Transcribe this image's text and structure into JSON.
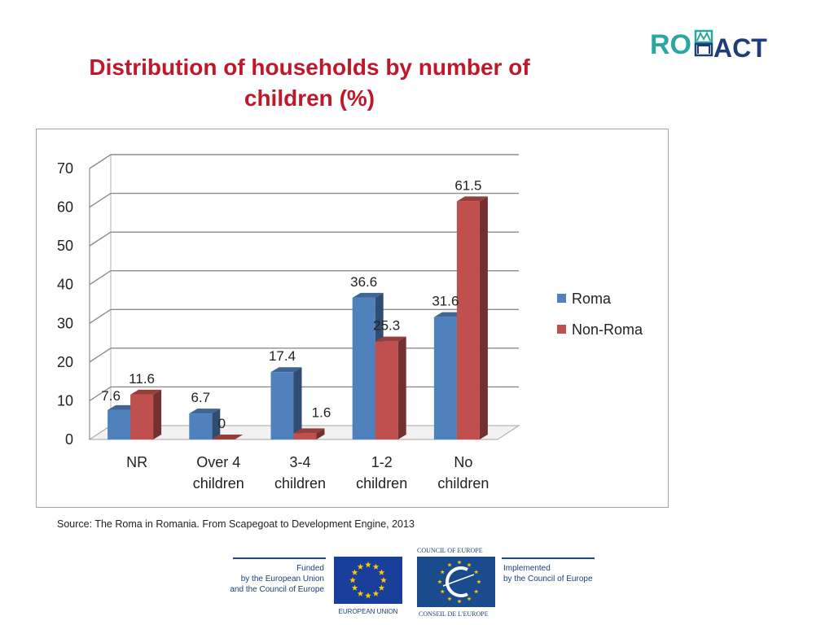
{
  "title_line1": "Distribution of households by number of",
  "title_line2": "children (%)",
  "logo": {
    "part1": "RO",
    "part2": "ACT",
    "colors": {
      "teal": "#2aa7a0",
      "navy": "#1f3e78"
    }
  },
  "source": "Source: The Roma in Romania. From Scapegoat to Development Engine, 2013",
  "footer": {
    "funded_line1": "Funded",
    "funded_line2": "by the European Union",
    "funded_line3": "and the Council of Europe",
    "eu_label": "EUROPEAN UNION",
    "coe_top": "COUNCIL OF EUROPE",
    "coe_bottom": "CONSEIL DE L'EUROPE",
    "implemented_line1": "Implemented",
    "implemented_line2": "by the Council of Europe",
    "colors": {
      "eu_blue": "#1a3f9a",
      "star_yellow": "#ffcc00",
      "coe_blue": "#1a4b8c"
    }
  },
  "chart_data": {
    "type": "bar",
    "categories": [
      [
        "NR"
      ],
      [
        "Over 4",
        "children"
      ],
      [
        "3-4",
        "children"
      ],
      [
        "1-2",
        "children"
      ],
      [
        "No",
        "children"
      ]
    ],
    "series": [
      {
        "name": "Roma",
        "color": "#4f81bd",
        "values": [
          7.6,
          6.7,
          17.4,
          36.6,
          31.6
        ]
      },
      {
        "name": "Non-Roma",
        "color": "#c0504d",
        "values": [
          11.6,
          0,
          1.6,
          25.3,
          61.5
        ]
      }
    ],
    "yticks": [
      0,
      10,
      20,
      30,
      40,
      50,
      60,
      70
    ],
    "ylim": [
      0,
      70
    ],
    "grid": true,
    "legend": "right"
  }
}
